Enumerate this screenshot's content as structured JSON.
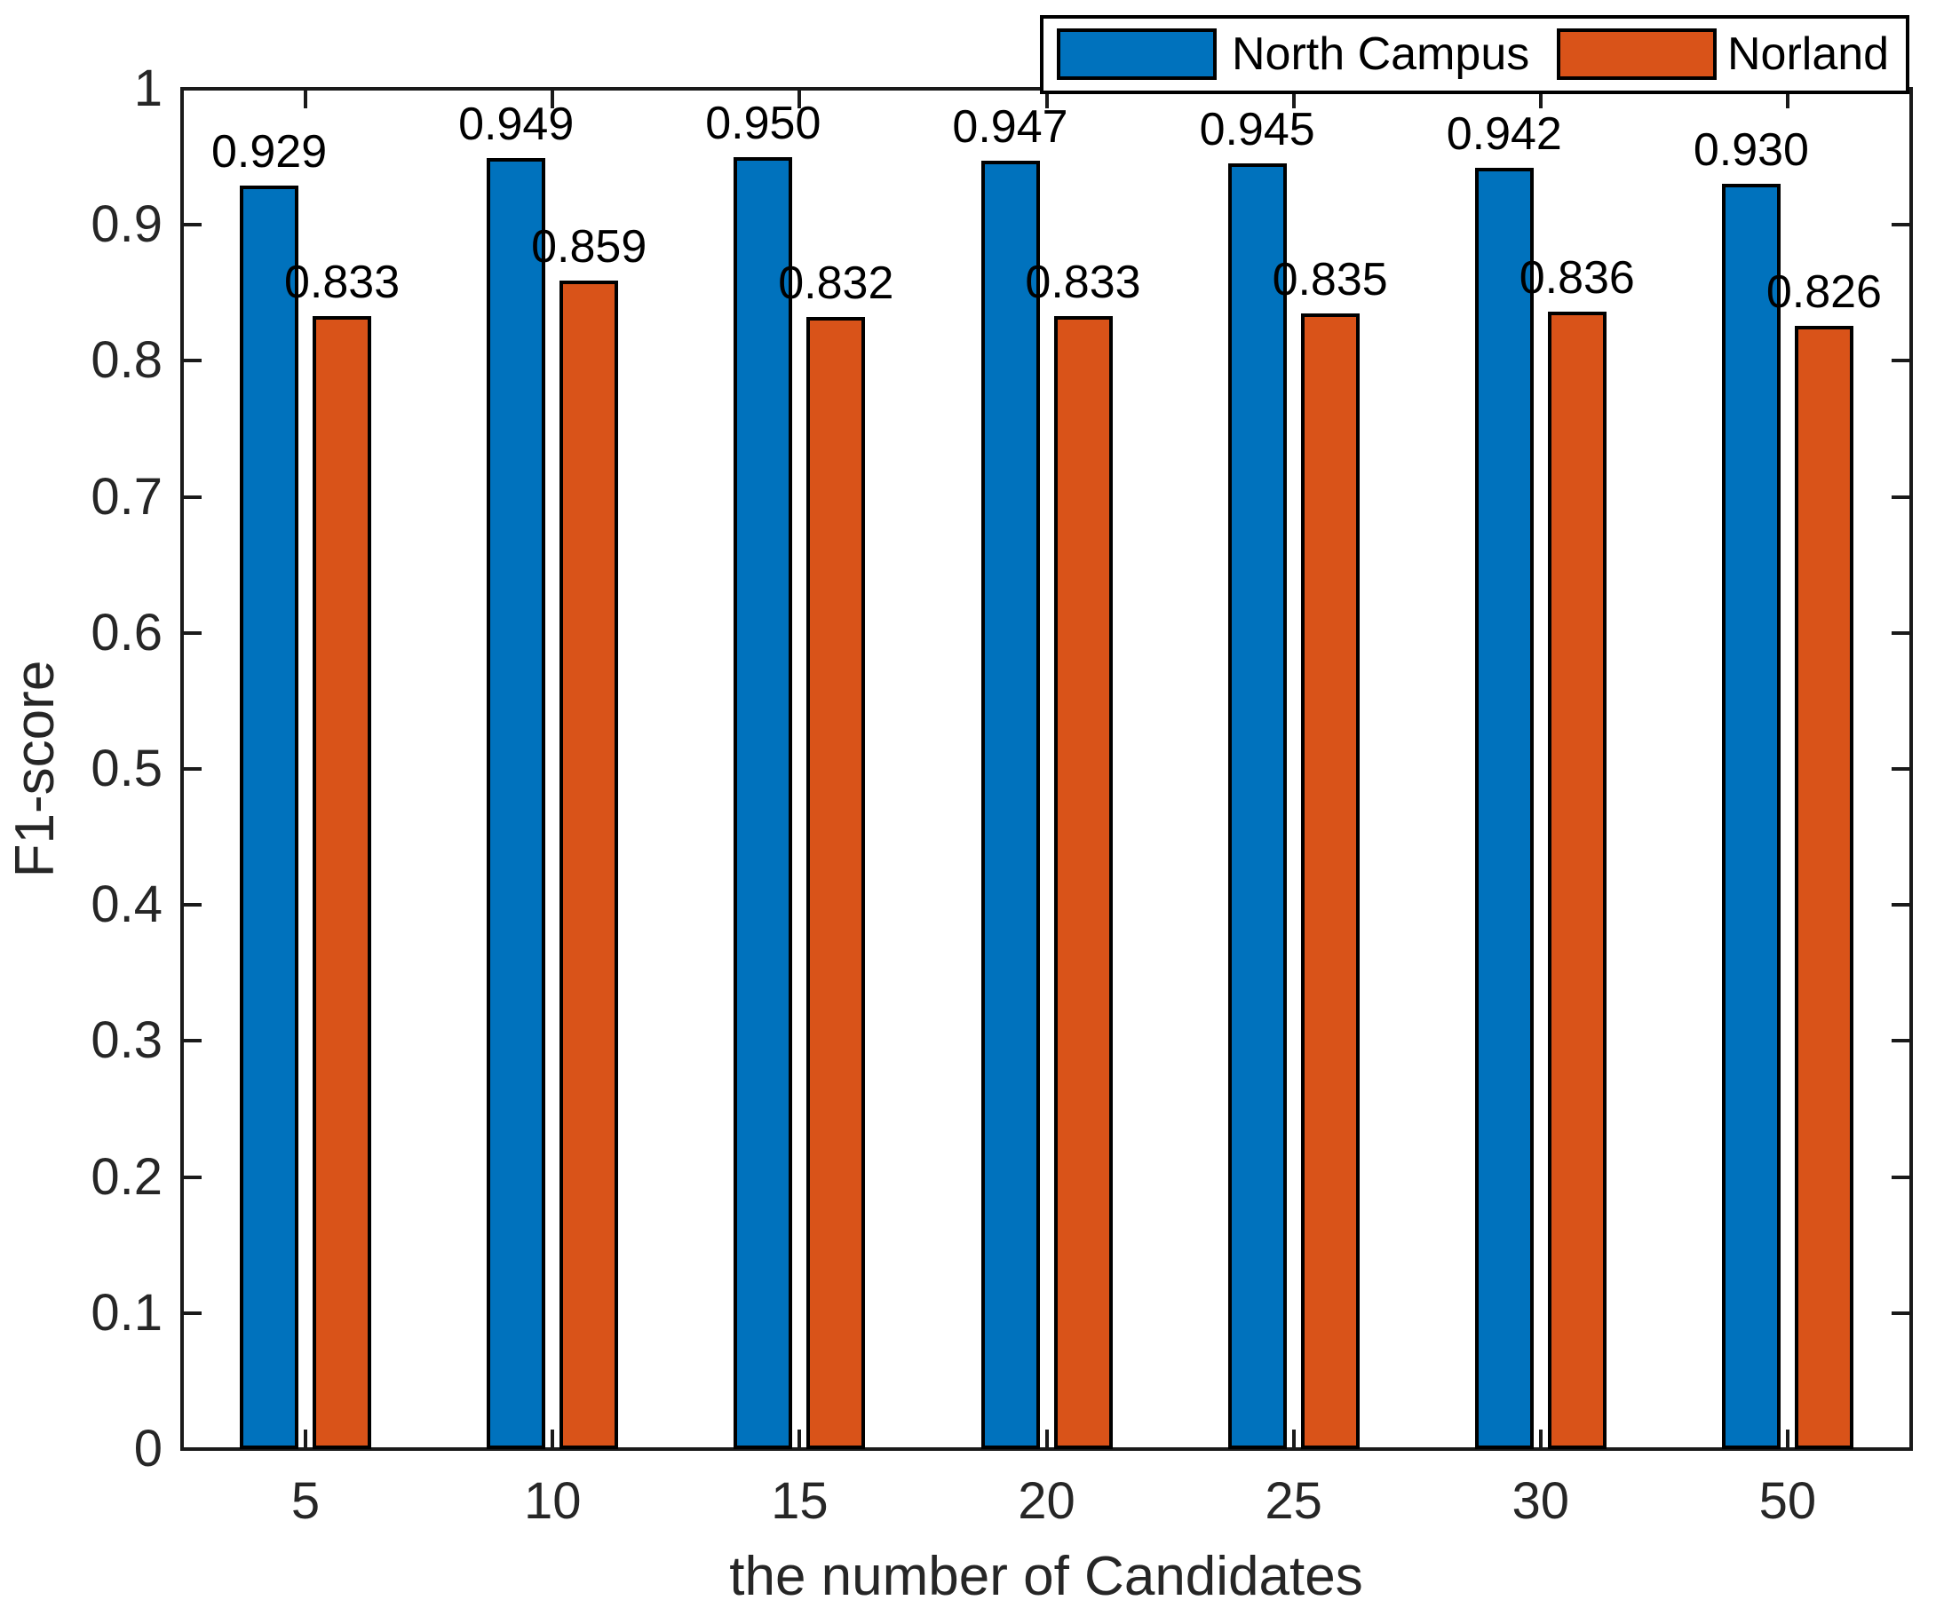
{
  "chart_data": {
    "type": "bar",
    "title": "",
    "categories": [
      "5",
      "10",
      "15",
      "20",
      "25",
      "30",
      "50"
    ],
    "series": [
      {
        "name": "North Campus",
        "color": "#0072BD",
        "values": [
          0.929,
          0.949,
          0.95,
          0.947,
          0.945,
          0.942,
          0.93
        ],
        "labels": [
          "0.929",
          "0.949",
          "0.950",
          "0.947",
          "0.945",
          "0.942",
          "0.930"
        ]
      },
      {
        "name": "Norland",
        "color": "#D95319",
        "values": [
          0.833,
          0.859,
          0.832,
          0.833,
          0.835,
          0.836,
          0.826
        ],
        "labels": [
          "0.833",
          "0.859",
          "0.832",
          "0.833",
          "0.835",
          "0.836",
          "0.826"
        ]
      }
    ],
    "xlabel": "the number of Candidates",
    "ylabel": "F1-score",
    "ylim": [
      0,
      1
    ],
    "ytick_labels": [
      "0",
      "0.1",
      "0.2",
      "0.3",
      "0.4",
      "0.5",
      "0.6",
      "0.7",
      "0.8",
      "0.9",
      "1"
    ],
    "grid": false,
    "value_labels_shown": true,
    "legend": {
      "position": "top-right",
      "items": [
        "North Campus",
        "Norland"
      ]
    },
    "style": {
      "bar_edge_color": "#000000",
      "axis_color": "#1a1a1a",
      "tick_text_color": "#262626",
      "background": "#ffffff"
    }
  }
}
